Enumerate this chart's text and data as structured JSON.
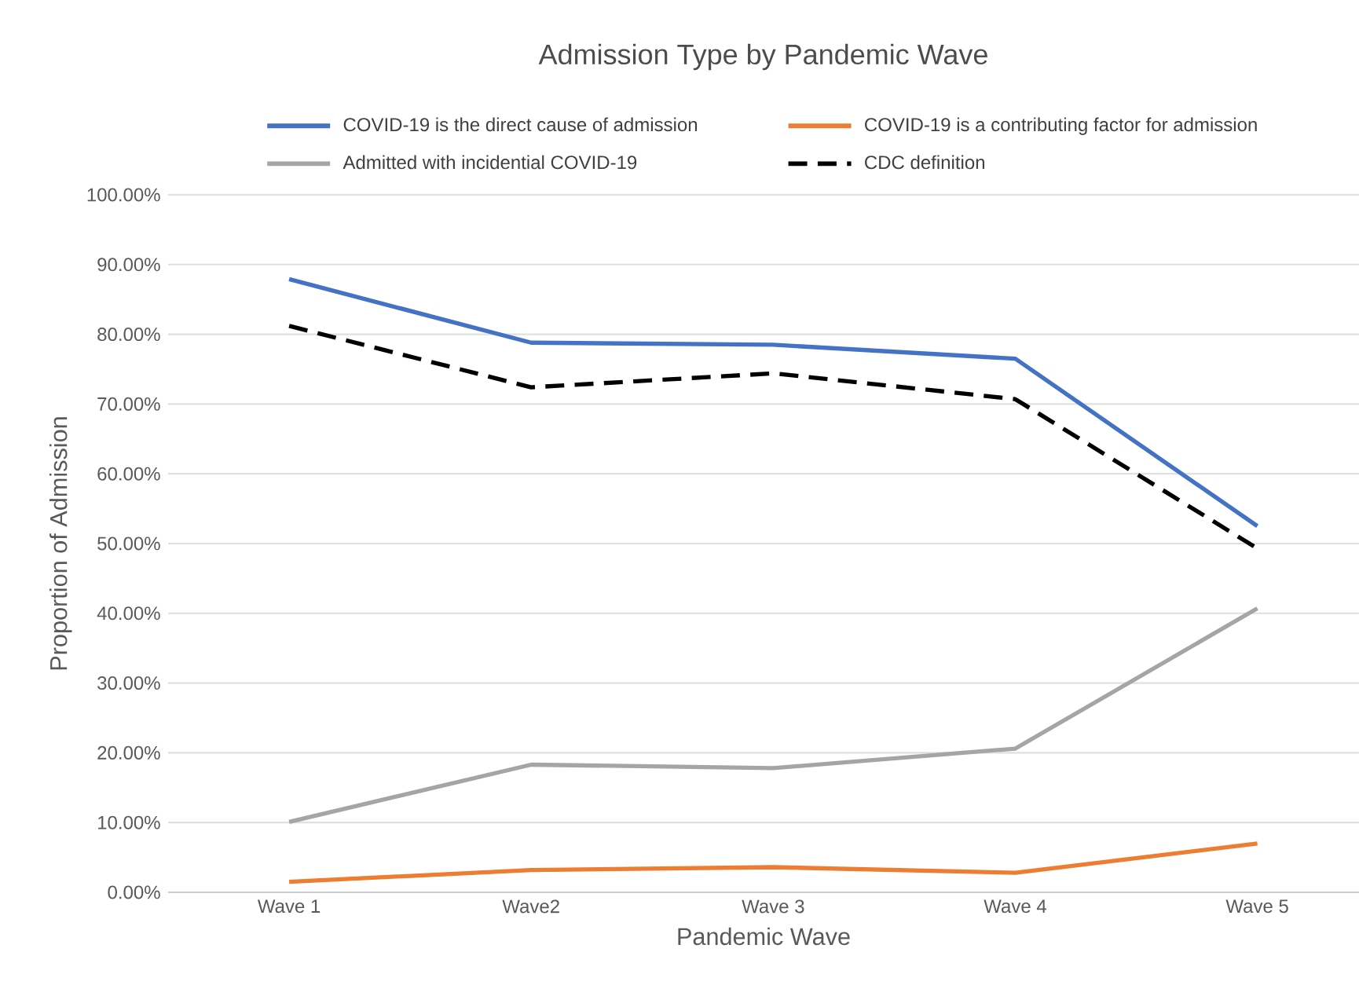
{
  "chart_data": {
    "type": "line",
    "title": "Admission Type by Pandemic Wave",
    "xlabel": "Pandemic Wave",
    "ylabel": "Proportion of Admission",
    "categories": [
      "Wave 1",
      "Wave2",
      "Wave 3",
      "Wave 4",
      "Wave 5"
    ],
    "series": [
      {
        "name": "COVID-19 is the direct cause of admission",
        "color": "#4472c4",
        "values": [
          87.9,
          78.8,
          78.5,
          76.5,
          52.5
        ]
      },
      {
        "name": "COVID-19 is a contributing factor for admission",
        "color": "#ed7d31",
        "values": [
          1.5,
          3.2,
          3.6,
          2.8,
          7.0
        ]
      },
      {
        "name": "Admitted with incidential COVID-19",
        "color": "#a5a5a5",
        "values": [
          10.1,
          18.3,
          17.8,
          20.6,
          40.7
        ]
      },
      {
        "name": "CDC definition",
        "color": "#000000",
        "values": [
          81.2,
          72.4,
          74.4,
          70.7,
          49.3
        ],
        "line_style": "dashed"
      }
    ],
    "ylim": [
      0,
      100
    ],
    "yticks": [
      {
        "value": 0,
        "label": "0.00%"
      },
      {
        "value": 10,
        "label": "10.00%"
      },
      {
        "value": 20,
        "label": "20.00%"
      },
      {
        "value": 30,
        "label": "30.00%"
      },
      {
        "value": 40,
        "label": "40.00%"
      },
      {
        "value": 50,
        "label": "50.00%"
      },
      {
        "value": 60,
        "label": "60.00%"
      },
      {
        "value": 70,
        "label": "70.00%"
      },
      {
        "value": 80,
        "label": "80.00%"
      },
      {
        "value": 90,
        "label": "90.00%"
      },
      {
        "value": 100,
        "label": "100.00%"
      }
    ],
    "grid": "y",
    "legend": "top"
  }
}
